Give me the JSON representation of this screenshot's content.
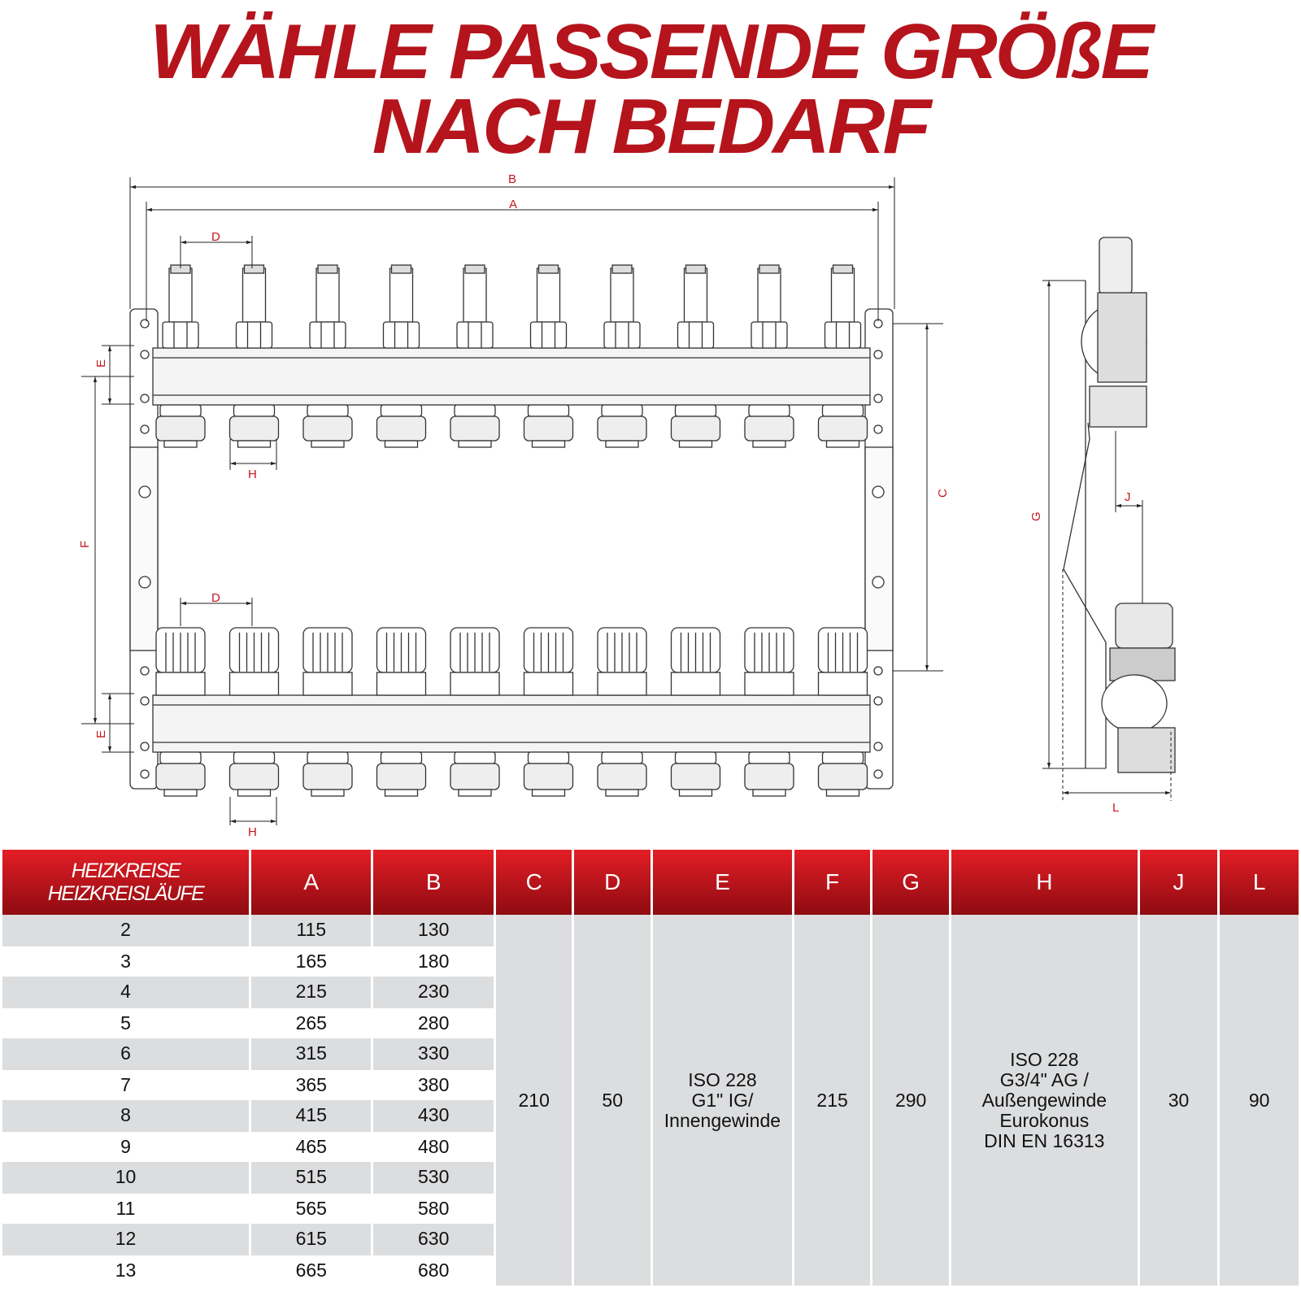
{
  "title": {
    "line1": "WÄHLE PASSENDE GRÖßE",
    "line2": "NACH BEDARF"
  },
  "colors": {
    "title": "#b5141c",
    "header_top": "#e41e26",
    "header_bottom": "#8e0b11",
    "dimension": "#c4161c",
    "row_gray": "#dcdddf"
  },
  "drawing": {
    "circuits_shown": 10,
    "labels": {
      "A": "A",
      "B": "B",
      "C": "C",
      "D": "D",
      "E": "E",
      "F": "F",
      "G": "G",
      "H": "H",
      "J": "J",
      "L": "L"
    }
  },
  "table": {
    "headers": [
      "HEIZKREISE HEIZKREISLÄUFE",
      "A",
      "B",
      "C",
      "D",
      "E",
      "F",
      "G",
      "H",
      "J",
      "L"
    ],
    "header_first_line1": "HEIZKREISE",
    "header_first_line2": "HEIZKREISLÄUFE",
    "rows": [
      {
        "n": "2",
        "a": "115",
        "b": "130"
      },
      {
        "n": "3",
        "a": "165",
        "b": "180"
      },
      {
        "n": "4",
        "a": "215",
        "b": "230"
      },
      {
        "n": "5",
        "a": "265",
        "b": "280"
      },
      {
        "n": "6",
        "a": "315",
        "b": "330"
      },
      {
        "n": "7",
        "a": "365",
        "b": "380"
      },
      {
        "n": "8",
        "a": "415",
        "b": "430"
      },
      {
        "n": "9",
        "a": "465",
        "b": "480"
      },
      {
        "n": "10",
        "a": "515",
        "b": "530"
      },
      {
        "n": "11",
        "a": "565",
        "b": "580"
      },
      {
        "n": "12",
        "a": "615",
        "b": "630"
      },
      {
        "n": "13",
        "a": "665",
        "b": "680"
      }
    ],
    "shared": {
      "C": "210",
      "D": "50",
      "E": [
        "ISO 228",
        "G1\" IG/",
        "Innengewinde"
      ],
      "F": "215",
      "G": "290",
      "H": [
        "ISO 228",
        "G3/4\" AG /",
        "Außengewinde",
        "Eurokonus",
        "DIN EN 16313"
      ],
      "J": "30",
      "L": "90"
    }
  }
}
